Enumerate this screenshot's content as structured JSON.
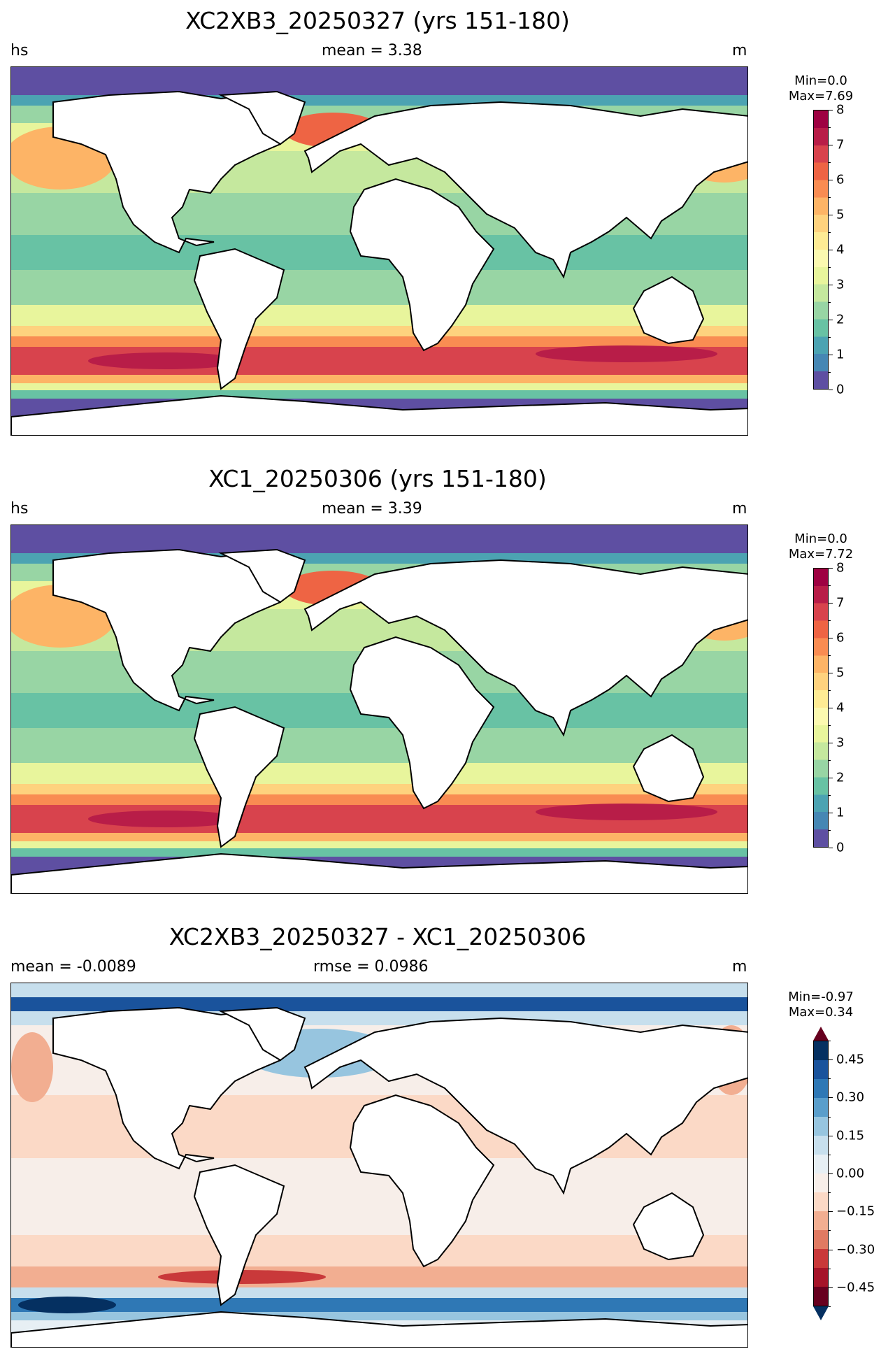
{
  "panels": [
    {
      "title": "XC2XB3_20250327 (yrs 151-180)",
      "left_label": "hs",
      "center_label": "mean = 3.38",
      "right_label": "m",
      "cb_min": "Min=0.0",
      "cb_max": "Max=7.69",
      "colorbar": {
        "ticks": [
          "0",
          "1",
          "2",
          "3",
          "4",
          "5",
          "6",
          "7",
          "8"
        ],
        "colors": [
          "#5e4fa2",
          "#4687b4",
          "#4ca3b2",
          "#68c2a4",
          "#98d5a4",
          "#c5e89e",
          "#e8f59c",
          "#fbf9b0",
          "#feeb94",
          "#fed27e",
          "#fdb466",
          "#f98c52",
          "#ee6444",
          "#d8434d",
          "#b81d48",
          "#9e0142"
        ]
      },
      "map": "Global map of significant wave height (hs), yrs 151-180 mean"
    },
    {
      "title": "XC1_20250306 (yrs 151-180)",
      "left_label": "hs",
      "center_label": "mean = 3.39",
      "right_label": "m",
      "cb_min": "Min=0.0",
      "cb_max": "Max=7.72",
      "colorbar": {
        "ticks": [
          "0",
          "1",
          "2",
          "3",
          "4",
          "5",
          "6",
          "7",
          "8"
        ],
        "colors": [
          "#5e4fa2",
          "#4687b4",
          "#4ca3b2",
          "#68c2a4",
          "#98d5a4",
          "#c5e89e",
          "#e8f59c",
          "#fbf9b0",
          "#feeb94",
          "#fed27e",
          "#fdb466",
          "#f98c52",
          "#ee6444",
          "#d8434d",
          "#b81d48",
          "#9e0142"
        ]
      },
      "map": "Global map of significant wave height (hs), yrs 151-180 mean"
    },
    {
      "title": "XC2XB3_20250327 - XC1_20250306",
      "left_label": "mean = -0.0089",
      "center_label": "rmse = 0.0986",
      "right_label": "m",
      "cb_min": "Min=-0.97",
      "cb_max": "Max=0.34",
      "colorbar": {
        "ticks": [
          "0.45",
          "0.30",
          "0.15",
          "0.00",
          "−0.15",
          "−0.30",
          "−0.45"
        ],
        "colors": [
          "#67001f",
          "#a51429",
          "#c9393a",
          "#e07a62",
          "#f2ae91",
          "#fbd9c6",
          "#f7eee9",
          "#e7eff4",
          "#c7dfed",
          "#97c5df",
          "#5a9ecb",
          "#2f78b5",
          "#1a539c",
          "#053061"
        ]
      },
      "map": "Global map of hs difference"
    }
  ]
}
